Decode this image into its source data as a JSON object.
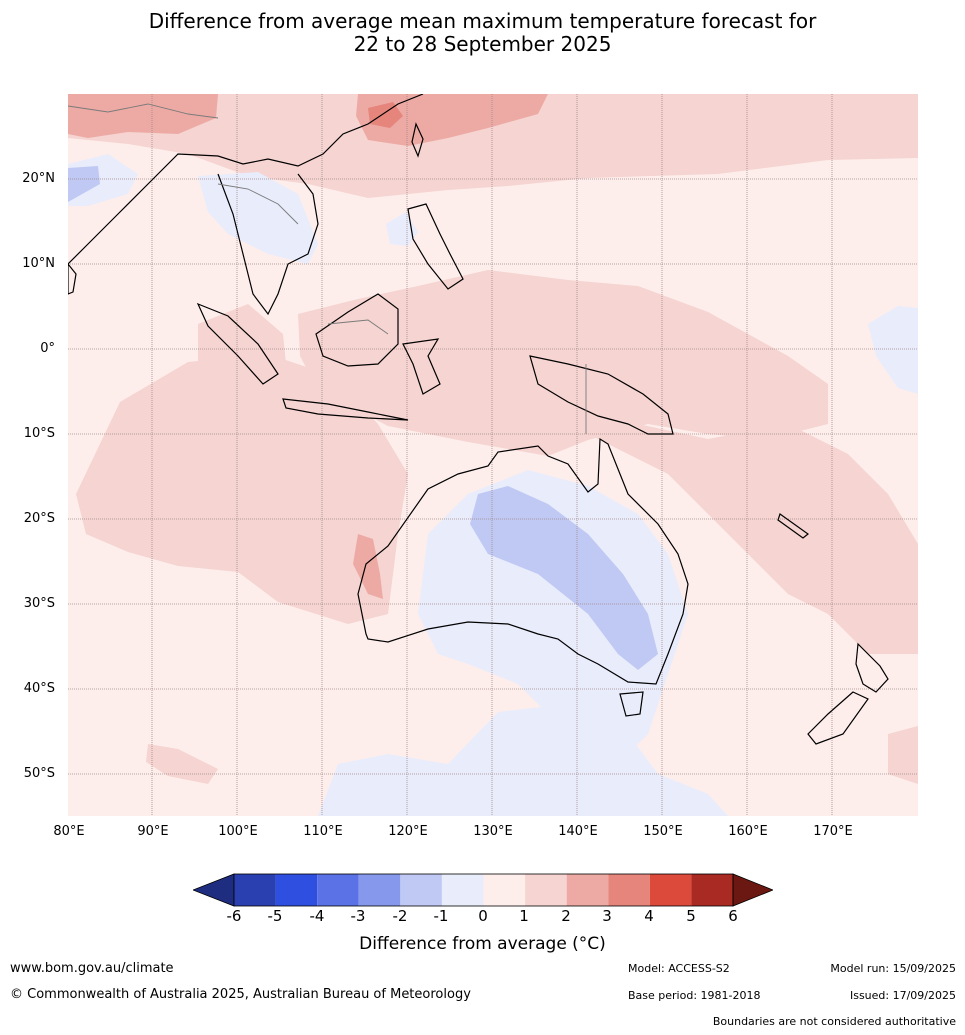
{
  "title_line1": "Difference from average mean maximum temperature forecast for",
  "title_line2": "22 to 28 September 2025",
  "lat_labels": [
    "20°N",
    "10°N",
    "0°",
    "10°S",
    "20°S",
    "30°S",
    "40°S",
    "50°S"
  ],
  "lon_labels": [
    "80°E",
    "90°E",
    "100°E",
    "110°E",
    "120°E",
    "130°E",
    "140°E",
    "150°E",
    "160°E",
    "170°E"
  ],
  "colorbar": {
    "ticks": [
      "-6",
      "-5",
      "-4",
      "-3",
      "-2",
      "-1",
      "0",
      "1",
      "2",
      "3",
      "4",
      "5",
      "6"
    ],
    "colors": [
      "#1f2d80",
      "#2a3fb0",
      "#2f4fe0",
      "#5b72e6",
      "#8698ec",
      "#c0c9f3",
      "#e8ecfb",
      "#fdeeec",
      "#f5d4d1",
      "#edaaa4",
      "#e5857c",
      "#dc4a3c",
      "#a82a22",
      "#6b1712"
    ],
    "label": "Difference from average (°C)"
  },
  "map": {
    "colors": {
      "ocean_base": "#fdeeec",
      "warm_1": "#f5d4d1",
      "warm_2": "#edaaa4",
      "warm_3": "#e5857c",
      "cool_1": "#e8ecfb",
      "cool_2": "#c0c9f3",
      "coast": "#000000",
      "border": "#7a7a7a",
      "grid": "#a08888"
    }
  },
  "footer": {
    "website": "www.bom.gov.au/climate",
    "copyright": "© Commonwealth of Australia 2025, Australian Bureau of Meteorology",
    "model": "Model: ACCESS-S2",
    "base_period": "Base period: 1981-2018",
    "model_run": "Model run: 15/09/2025",
    "issued": "Issued: 17/09/2025",
    "disclaimer": "Boundaries are not considered authoritative"
  }
}
